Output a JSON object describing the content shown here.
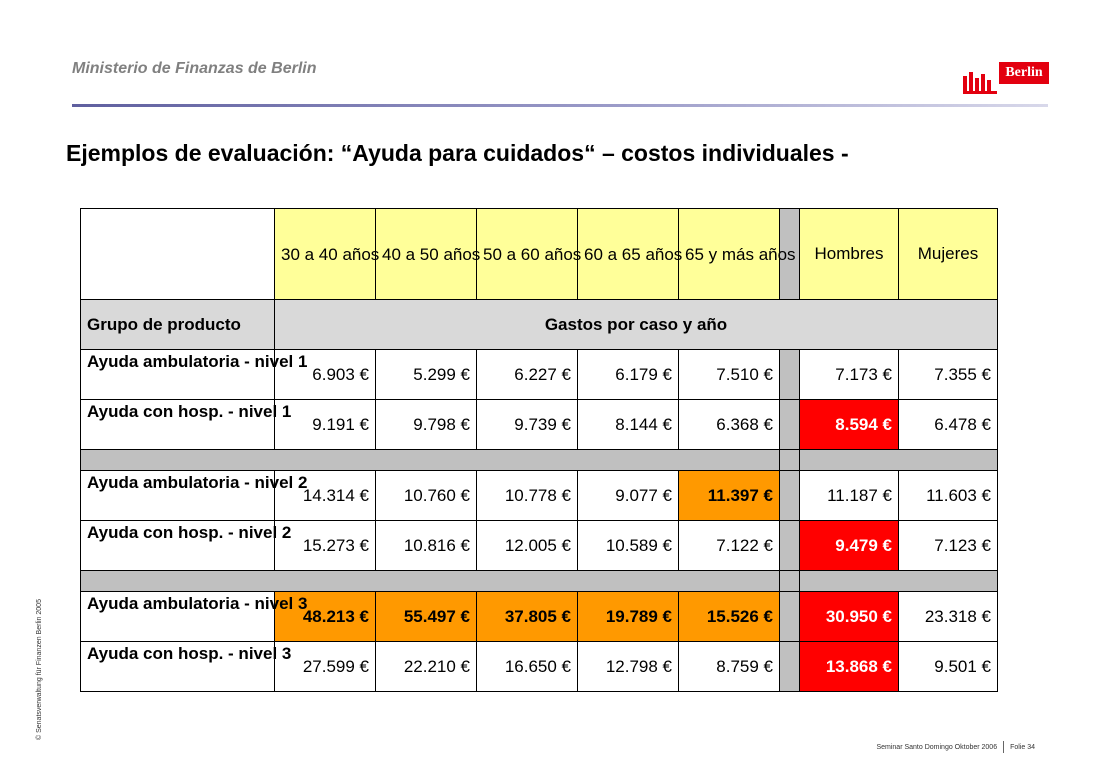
{
  "header": {
    "organization": "Ministerio de Finanzas de Berlin",
    "logo_text": "Berlin",
    "title": "Ejemplos de evaluación: “Ayuda para cuidados“ – costos individuales -"
  },
  "table": {
    "age_headers": [
      "30 a 40 años",
      "40 a 50 años",
      "50 a 60 años",
      "60 a 65 años",
      "65 y más años"
    ],
    "sex_headers": [
      "Hombres",
      "Mujeres"
    ],
    "group_label": "Grupo de producto",
    "group_caption": "Gastos por caso y año",
    "rows": [
      {
        "label": "Ayuda ambulatoria - nivel 1",
        "ages": [
          "6.903 €",
          "5.299 €",
          "6.227 €",
          "6.179 €",
          "7.510 €"
        ],
        "men": "7.173 €",
        "women": "7.355 €"
      },
      {
        "label": "Ayuda con hosp. - nivel 1",
        "ages": [
          "9.191 €",
          "9.798 €",
          "9.739 €",
          "8.144 €",
          "6.368 €"
        ],
        "men": "8.594 €",
        "women": "6.478 €"
      },
      {
        "label": "Ayuda ambulatoria - nivel 2",
        "ages": [
          "14.314 €",
          "10.760 €",
          "10.778 €",
          "9.077 €",
          "11.397 €"
        ],
        "men": "11.187 €",
        "women": "11.603 €"
      },
      {
        "label": "Ayuda con hosp. - nivel 2",
        "ages": [
          "15.273 €",
          "10.816 €",
          "12.005 €",
          "10.589 €",
          "7.122 €"
        ],
        "men": "9.479 €",
        "women": "7.123 €"
      },
      {
        "label": "Ayuda ambulatoria - nivel 3",
        "ages": [
          "48.213 €",
          "55.497 €",
          "37.805 €",
          "19.789 €",
          "15.526 €"
        ],
        "men": "30.950 €",
        "women": "23.318 €"
      },
      {
        "label": "Ayuda con hosp. - nivel 3",
        "ages": [
          "27.599 €",
          "22.210 €",
          "16.650 €",
          "12.798 €",
          "8.759 €"
        ],
        "men": "13.868 €",
        "women": "9.501 €"
      }
    ],
    "highlight_colors": {
      "orange": "#ff9900",
      "red": "#ff0000",
      "header_yellow": "#ffff99",
      "separator_gray": "#c0c0c0"
    }
  },
  "footer": {
    "copyright": "© Senatsverwaltung für Finanzen Berlin 2005",
    "seminar": "Seminar Santo Domingo Oktober 2006",
    "slide": "Folie 34"
  }
}
